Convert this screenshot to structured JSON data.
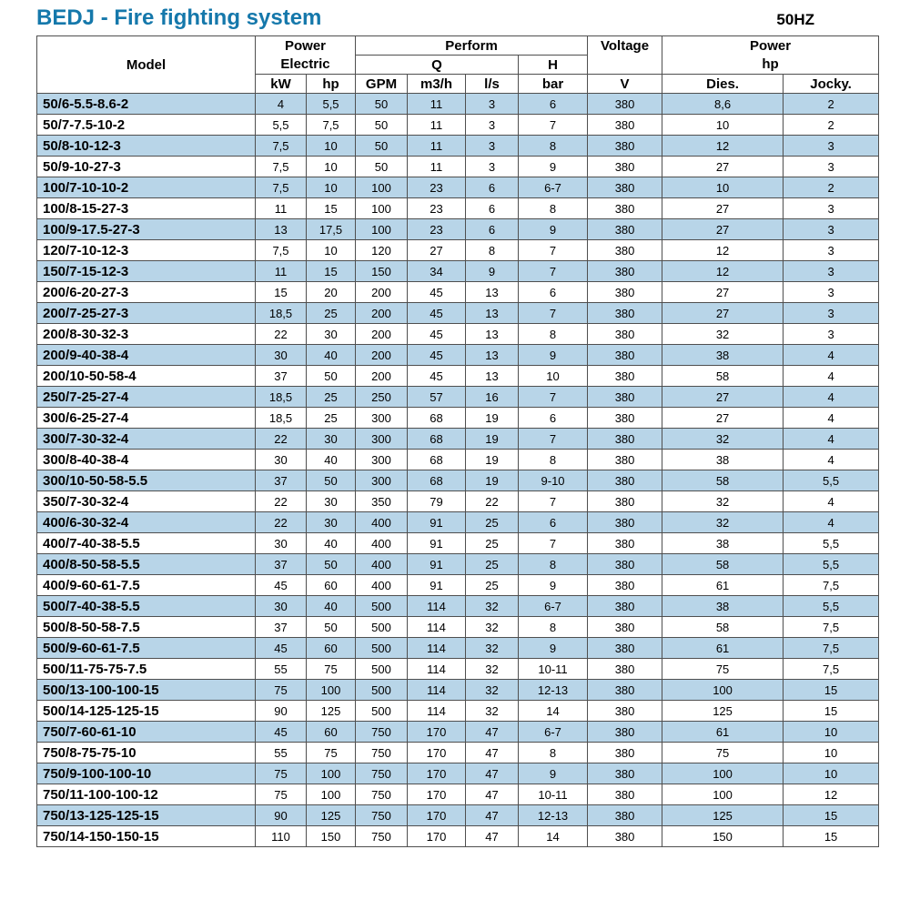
{
  "page": {
    "title": "BEDJ - Fire fighting system",
    "frequency": "50HZ"
  },
  "table": {
    "header": {
      "model": "Model",
      "power": "Power",
      "electric": "Electric",
      "perform": "Perform",
      "q": "Q",
      "h": "H",
      "voltage": "Voltage",
      "power2": "Power",
      "hp2": "hp",
      "units": [
        "kW",
        "hp",
        "GPM",
        "m3/h",
        "l/s",
        "bar",
        "V",
        "Dies.",
        "Jocky."
      ]
    },
    "rows": [
      {
        "model": "50/6-5.5-8.6-2",
        "values": [
          "4",
          "5,5",
          "50",
          "11",
          "3",
          "6",
          "380",
          "8,6",
          "2"
        ]
      },
      {
        "model": "50/7-7.5-10-2",
        "values": [
          "5,5",
          "7,5",
          "50",
          "11",
          "3",
          "7",
          "380",
          "10",
          "2"
        ]
      },
      {
        "model": "50/8-10-12-3",
        "values": [
          "7,5",
          "10",
          "50",
          "11",
          "3",
          "8",
          "380",
          "12",
          "3"
        ]
      },
      {
        "model": "50/9-10-27-3",
        "values": [
          "7,5",
          "10",
          "50",
          "11",
          "3",
          "9",
          "380",
          "27",
          "3"
        ]
      },
      {
        "model": "100/7-10-10-2",
        "values": [
          "7,5",
          "10",
          "100",
          "23",
          "6",
          "6-7",
          "380",
          "10",
          "2"
        ]
      },
      {
        "model": "100/8-15-27-3",
        "values": [
          "11",
          "15",
          "100",
          "23",
          "6",
          "8",
          "380",
          "27",
          "3"
        ]
      },
      {
        "model": "100/9-17.5-27-3",
        "values": [
          "13",
          "17,5",
          "100",
          "23",
          "6",
          "9",
          "380",
          "27",
          "3"
        ]
      },
      {
        "model": "120/7-10-12-3",
        "values": [
          "7,5",
          "10",
          "120",
          "27",
          "8",
          "7",
          "380",
          "12",
          "3"
        ]
      },
      {
        "model": "150/7-15-12-3",
        "values": [
          "11",
          "15",
          "150",
          "34",
          "9",
          "7",
          "380",
          "12",
          "3"
        ]
      },
      {
        "model": "200/6-20-27-3",
        "values": [
          "15",
          "20",
          "200",
          "45",
          "13",
          "6",
          "380",
          "27",
          "3"
        ]
      },
      {
        "model": "200/7-25-27-3",
        "values": [
          "18,5",
          "25",
          "200",
          "45",
          "13",
          "7",
          "380",
          "27",
          "3"
        ]
      },
      {
        "model": "200/8-30-32-3",
        "values": [
          "22",
          "30",
          "200",
          "45",
          "13",
          "8",
          "380",
          "32",
          "3"
        ]
      },
      {
        "model": "200/9-40-38-4",
        "values": [
          "30",
          "40",
          "200",
          "45",
          "13",
          "9",
          "380",
          "38",
          "4"
        ]
      },
      {
        "model": "200/10-50-58-4",
        "values": [
          "37",
          "50",
          "200",
          "45",
          "13",
          "10",
          "380",
          "58",
          "4"
        ]
      },
      {
        "model": "250/7-25-27-4",
        "values": [
          "18,5",
          "25",
          "250",
          "57",
          "16",
          "7",
          "380",
          "27",
          "4"
        ]
      },
      {
        "model": "300/6-25-27-4",
        "values": [
          "18,5",
          "25",
          "300",
          "68",
          "19",
          "6",
          "380",
          "27",
          "4"
        ]
      },
      {
        "model": "300/7-30-32-4",
        "values": [
          "22",
          "30",
          "300",
          "68",
          "19",
          "7",
          "380",
          "32",
          "4"
        ]
      },
      {
        "model": "300/8-40-38-4",
        "values": [
          "30",
          "40",
          "300",
          "68",
          "19",
          "8",
          "380",
          "38",
          "4"
        ]
      },
      {
        "model": "300/10-50-58-5.5",
        "values": [
          "37",
          "50",
          "300",
          "68",
          "19",
          "9-10",
          "380",
          "58",
          "5,5"
        ]
      },
      {
        "model": "350/7-30-32-4",
        "values": [
          "22",
          "30",
          "350",
          "79",
          "22",
          "7",
          "380",
          "32",
          "4"
        ]
      },
      {
        "model": "400/6-30-32-4",
        "values": [
          "22",
          "30",
          "400",
          "91",
          "25",
          "6",
          "380",
          "32",
          "4"
        ]
      },
      {
        "model": "400/7-40-38-5.5",
        "values": [
          "30",
          "40",
          "400",
          "91",
          "25",
          "7",
          "380",
          "38",
          "5,5"
        ]
      },
      {
        "model": "400/8-50-58-5.5",
        "values": [
          "37",
          "50",
          "400",
          "91",
          "25",
          "8",
          "380",
          "58",
          "5,5"
        ]
      },
      {
        "model": "400/9-60-61-7.5",
        "values": [
          "45",
          "60",
          "400",
          "91",
          "25",
          "9",
          "380",
          "61",
          "7,5"
        ]
      },
      {
        "model": "500/7-40-38-5.5",
        "values": [
          "30",
          "40",
          "500",
          "114",
          "32",
          "6-7",
          "380",
          "38",
          "5,5"
        ]
      },
      {
        "model": "500/8-50-58-7.5",
        "values": [
          "37",
          "50",
          "500",
          "114",
          "32",
          "8",
          "380",
          "58",
          "7,5"
        ]
      },
      {
        "model": "500/9-60-61-7.5",
        "values": [
          "45",
          "60",
          "500",
          "114",
          "32",
          "9",
          "380",
          "61",
          "7,5"
        ]
      },
      {
        "model": "500/11-75-75-7.5",
        "values": [
          "55",
          "75",
          "500",
          "114",
          "32",
          "10-11",
          "380",
          "75",
          "7,5"
        ]
      },
      {
        "model": "500/13-100-100-15",
        "values": [
          "75",
          "100",
          "500",
          "114",
          "32",
          "12-13",
          "380",
          "100",
          "15"
        ]
      },
      {
        "model": "500/14-125-125-15",
        "values": [
          "90",
          "125",
          "500",
          "114",
          "32",
          "14",
          "380",
          "125",
          "15"
        ]
      },
      {
        "model": "750/7-60-61-10",
        "values": [
          "45",
          "60",
          "750",
          "170",
          "47",
          "6-7",
          "380",
          "61",
          "10"
        ]
      },
      {
        "model": "750/8-75-75-10",
        "values": [
          "55",
          "75",
          "750",
          "170",
          "47",
          "8",
          "380",
          "75",
          "10"
        ]
      },
      {
        "model": "750/9-100-100-10",
        "values": [
          "75",
          "100",
          "750",
          "170",
          "47",
          "9",
          "380",
          "100",
          "10"
        ]
      },
      {
        "model": "750/11-100-100-12",
        "values": [
          "75",
          "100",
          "750",
          "170",
          "47",
          "10-11",
          "380",
          "100",
          "12"
        ]
      },
      {
        "model": "750/13-125-125-15",
        "values": [
          "90",
          "125",
          "750",
          "170",
          "47",
          "12-13",
          "380",
          "125",
          "15"
        ]
      },
      {
        "model": "750/14-150-150-15",
        "values": [
          "110",
          "150",
          "750",
          "170",
          "47",
          "14",
          "380",
          "150",
          "15"
        ]
      }
    ]
  }
}
